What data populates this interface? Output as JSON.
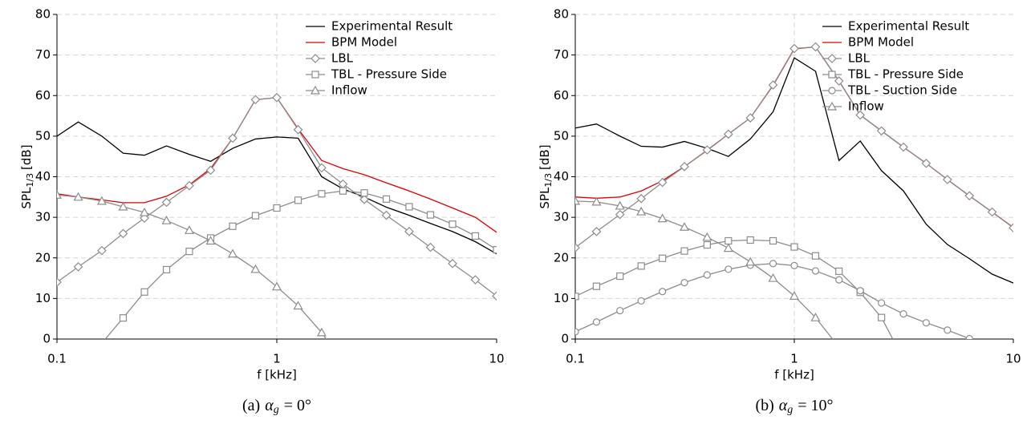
{
  "chart_data": [
    {
      "type": "line",
      "caption": {
        "prefix": "(a)",
        "symbol": "α",
        "subscript": "g",
        "rest": "= 0°"
      },
      "xlabel": "f [kHz]",
      "ylabel": {
        "text": "SPL",
        "subscript": "1/3",
        "unit": "[dB]"
      },
      "log_x": true,
      "grid": true,
      "legend": "upper right",
      "xlim": [
        0.1,
        10
      ],
      "xticks": [
        0.1,
        1,
        10
      ],
      "ylim": [
        0,
        80
      ],
      "yticks": [
        0,
        10,
        20,
        30,
        40,
        50,
        60,
        70,
        80
      ],
      "x": [
        0.1,
        0.125,
        0.16,
        0.2,
        0.25,
        0.315,
        0.4,
        0.5,
        0.63,
        0.8,
        1,
        1.25,
        1.6,
        2,
        2.5,
        3.15,
        4,
        5,
        6.3,
        8,
        10
      ],
      "series": [
        {
          "name": "Experimental Result",
          "color": "#000000",
          "marker": null,
          "values": [
            50,
            53.5,
            50,
            45.8,
            45.3,
            47.6,
            45.5,
            43.8,
            47,
            49.3,
            49.8,
            49.5,
            40,
            37,
            35,
            32.5,
            30.5,
            28.5,
            26.5,
            24,
            21
          ]
        },
        {
          "name": "BPM Model",
          "color": "#e00000",
          "marker": null,
          "values": [
            35.8,
            35,
            34.3,
            33.6,
            33.6,
            35.2,
            38,
            42,
            49.5,
            59,
            59.5,
            51.8,
            44,
            42,
            40.5,
            38.5,
            36.5,
            34.5,
            32.3,
            30,
            26.3
          ]
        },
        {
          "name": "LBL",
          "color": "#8c8c8c",
          "marker": "diamond",
          "values": [
            14,
            17.8,
            21.8,
            26,
            29.8,
            33.7,
            37.8,
            41.6,
            49.5,
            59,
            59.5,
            51.6,
            42.2,
            38.2,
            34.4,
            30.5,
            26.5,
            22.6,
            18.6,
            14.6,
            10.6
          ]
        },
        {
          "name": "TBL - Pressure Side",
          "color": "#8c8c8c",
          "marker": "square",
          "values": [
            null,
            null,
            -1,
            5.2,
            11.6,
            17.1,
            21.6,
            24.9,
            27.8,
            30.4,
            32.3,
            34.2,
            35.8,
            36.5,
            36,
            34.5,
            32.6,
            30.6,
            28.3,
            25.4,
            22
          ]
        },
        {
          "name": "Inflow",
          "color": "#8c8c8c",
          "marker": "triangle",
          "values": [
            35.5,
            35,
            34,
            32.6,
            31.2,
            29.2,
            26.8,
            24.2,
            21,
            17.2,
            12.9,
            8.2,
            1.6,
            -6,
            null,
            null,
            null,
            null,
            null,
            null,
            null
          ]
        }
      ]
    },
    {
      "type": "line",
      "caption": {
        "prefix": "(b)",
        "symbol": "α",
        "subscript": "g",
        "rest": "= 10°"
      },
      "xlabel": "f [kHz]",
      "ylabel": {
        "text": "SPL",
        "subscript": "1/3",
        "unit": "[dB]"
      },
      "log_x": true,
      "grid": true,
      "legend": "upper right",
      "xlim": [
        0.1,
        10
      ],
      "xticks": [
        0.1,
        1,
        10
      ],
      "ylim": [
        0,
        80
      ],
      "yticks": [
        0,
        10,
        20,
        30,
        40,
        50,
        60,
        70,
        80
      ],
      "x": [
        0.1,
        0.125,
        0.16,
        0.2,
        0.25,
        0.315,
        0.4,
        0.5,
        0.63,
        0.8,
        1,
        1.25,
        1.6,
        2,
        2.5,
        3.15,
        4,
        5,
        6.3,
        8,
        10
      ],
      "series": [
        {
          "name": "Experimental Result",
          "color": "#000000",
          "marker": null,
          "values": [
            52,
            53,
            50,
            47.5,
            47.3,
            48.7,
            47,
            45,
            49.3,
            56,
            69.3,
            66,
            44,
            48.8,
            41.5,
            36.5,
            28.3,
            23.3,
            19.8,
            16,
            13.8
          ]
        },
        {
          "name": "BPM Model",
          "color": "#e00000",
          "marker": null,
          "values": [
            35,
            34.7,
            35,
            36.5,
            39,
            42.5,
            46.5,
            50.5,
            54.5,
            62.5,
            71.5,
            72,
            63.6,
            55.2,
            51.3,
            47.3,
            43.3,
            39.3,
            35.3,
            31.3,
            27.5
          ]
        },
        {
          "name": "LBL",
          "color": "#8c8c8c",
          "marker": "diamond",
          "values": [
            22.5,
            26.5,
            30.7,
            34.6,
            38.6,
            42.5,
            46.6,
            50.5,
            54.5,
            62.6,
            71.6,
            72,
            63.6,
            55.2,
            51.3,
            47.3,
            43.3,
            39.3,
            35.3,
            31.3,
            27.4
          ]
        },
        {
          "name": "TBL - Pressure Side",
          "color": "#8c8c8c",
          "marker": "square",
          "values": [
            10.5,
            13,
            15.5,
            18,
            19.9,
            21.7,
            23.2,
            24.2,
            24.4,
            24.2,
            22.7,
            20.5,
            16.7,
            11.5,
            5.3,
            -5,
            null,
            null,
            null,
            null,
            null
          ]
        },
        {
          "name": "TBL - Suction Side",
          "color": "#8c8c8c",
          "marker": "circle",
          "values": [
            1.8,
            4.2,
            7,
            9.4,
            11.7,
            13.9,
            15.8,
            17.2,
            18.2,
            18.6,
            18.1,
            16.8,
            14.6,
            11.9,
            8.9,
            6.2,
            4,
            2.2,
            0.1,
            -3,
            null
          ]
        },
        {
          "name": "Inflow",
          "color": "#8c8c8c",
          "marker": "triangle",
          "values": [
            34,
            33.8,
            32.8,
            31.4,
            29.7,
            27.6,
            25.1,
            22.4,
            19,
            15,
            10.6,
            5.3,
            -2,
            null,
            null,
            null,
            null,
            null,
            null,
            null,
            null
          ]
        }
      ]
    }
  ]
}
